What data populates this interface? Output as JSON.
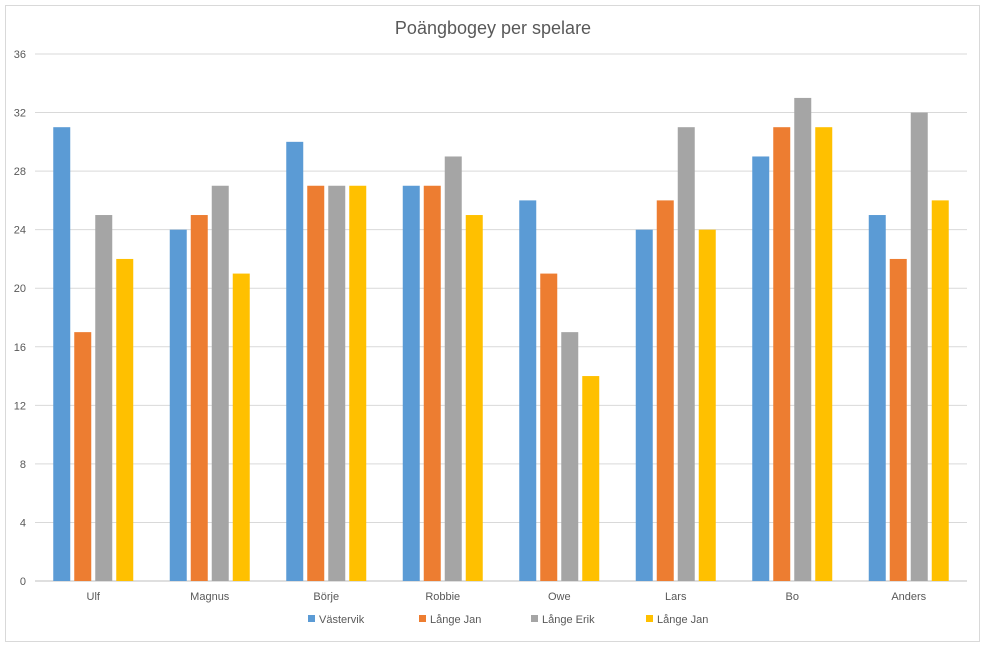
{
  "chart_data": {
    "type": "bar",
    "title": "Poängbogey per spelare",
    "xlabel": "",
    "ylabel": "",
    "ylim": [
      0,
      36
    ],
    "yticks": [
      0,
      4,
      8,
      12,
      16,
      20,
      24,
      28,
      32,
      36
    ],
    "grid": true,
    "legend_position": "bottom",
    "categories": [
      "Ulf",
      "Magnus",
      "Börje",
      "Robbie",
      "Owe",
      "Lars",
      "Bo",
      "Anders"
    ],
    "series": [
      {
        "name": "Västervik",
        "color": "#5b9bd5",
        "values": [
          31,
          24,
          30,
          27,
          26,
          24,
          29,
          25
        ]
      },
      {
        "name": "Långe Jan",
        "color": "#ed7d31",
        "values": [
          17,
          25,
          27,
          27,
          21,
          26,
          31,
          22
        ]
      },
      {
        "name": "Långe Erik",
        "color": "#a5a5a5",
        "values": [
          25,
          27,
          27,
          29,
          17,
          31,
          33,
          32
        ]
      },
      {
        "name": "Långe Jan",
        "color": "#ffc000",
        "values": [
          22,
          21,
          27,
          25,
          14,
          24,
          31,
          26
        ]
      }
    ],
    "gridline_color": "#d9d9d9",
    "axis_color": "#bfbfbf"
  }
}
